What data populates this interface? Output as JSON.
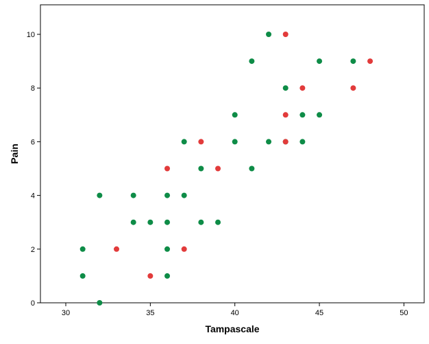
{
  "chart_data": {
    "type": "scatter",
    "title": "",
    "xlabel": "Tampascale",
    "ylabel": "Pain",
    "xlim": [
      28.5,
      51.2
    ],
    "ylim": [
      0,
      11.1
    ],
    "xticks": [
      30,
      35,
      40,
      45,
      50
    ],
    "yticks": [
      0,
      2,
      4,
      6,
      8,
      10
    ],
    "grid": false,
    "legend": "none",
    "colors": {
      "green": "#0e8c47",
      "red": "#e23b3b",
      "frame": "#000000"
    },
    "series": [
      {
        "color": "green",
        "points": [
          [
            31,
            2
          ],
          [
            31,
            1
          ],
          [
            32,
            4
          ],
          [
            32,
            0
          ],
          [
            34,
            4
          ],
          [
            34,
            3
          ],
          [
            35,
            3
          ],
          [
            36,
            4
          ],
          [
            36,
            3
          ],
          [
            36,
            2
          ],
          [
            36,
            1
          ],
          [
            37,
            6
          ],
          [
            37,
            4
          ],
          [
            38,
            5
          ],
          [
            38,
            3
          ],
          [
            39,
            3
          ],
          [
            40,
            7
          ],
          [
            40,
            6
          ],
          [
            41,
            9
          ],
          [
            41,
            5
          ],
          [
            42,
            10
          ],
          [
            42,
            6
          ],
          [
            43,
            8
          ],
          [
            43,
            6
          ],
          [
            44,
            7
          ],
          [
            44,
            6
          ],
          [
            45,
            9
          ],
          [
            45,
            7
          ],
          [
            47,
            9
          ]
        ]
      },
      {
        "color": "red",
        "points": [
          [
            33,
            2
          ],
          [
            35,
            1
          ],
          [
            36,
            5
          ],
          [
            37,
            2
          ],
          [
            38,
            6
          ],
          [
            39,
            5
          ],
          [
            43,
            10
          ],
          [
            43,
            7
          ],
          [
            43,
            6
          ],
          [
            44,
            8
          ],
          [
            47,
            8
          ],
          [
            48,
            9
          ]
        ]
      }
    ]
  }
}
